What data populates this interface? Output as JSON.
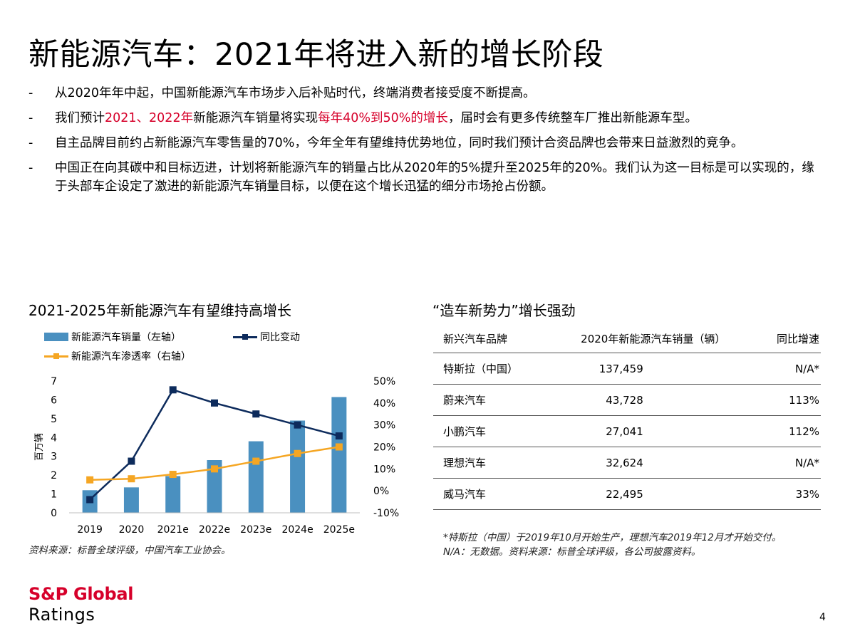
{
  "title": "新能源汽车：2021年将进入新的增长阶段",
  "bullets": [
    {
      "segments": [
        {
          "text": "从2020年年中起，中国新能源汽车市场步入后补贴时代，终端消费者接受度不断提高。",
          "red": false
        }
      ]
    },
    {
      "segments": [
        {
          "text": "我们预计",
          "red": false
        },
        {
          "text": "2021、2022年",
          "red": true
        },
        {
          "text": "新能源汽车销量将实现",
          "red": false
        },
        {
          "text": "每年40%到50%的增长",
          "red": true
        },
        {
          "text": "，届时会有更多传统整车厂推出新能源车型。",
          "red": false
        }
      ]
    },
    {
      "segments": [
        {
          "text": "自主品牌目前约占新能源汽车零售量的70%，今年全年有望维持优势地位，同时我们预计合资品牌也会带来日益激烈的竞争。",
          "red": false
        }
      ]
    },
    {
      "segments": [
        {
          "text": "中国正在向其碳中和目标迈进，计划将新能源汽车的销量占比从2020年的5%提升至2025年的20%。我们认为这一目标是可以实现的，缘于头部车企设定了激进的新能源汽车销量目标，以便在这个增长迅猛的细分市场抢占份额。",
          "red": false
        }
      ]
    }
  ],
  "bullet_marker": "-",
  "chart_data": {
    "type": "bar",
    "title": "2021-2025年新能源汽车有望维持高增长",
    "categories": [
      "2019",
      "2020",
      "2021e",
      "2022e",
      "2023e",
      "2024e",
      "2025e"
    ],
    "series": [
      {
        "name": "新能源汽车销量（左轴）",
        "type": "bar",
        "axis": "left",
        "values": [
          1.2,
          1.35,
          1.95,
          2.8,
          3.8,
          4.9,
          6.15
        ]
      },
      {
        "name": "同比变动",
        "type": "line",
        "axis": "right",
        "values": [
          -4.0,
          13.5,
          46.0,
          40.0,
          35.0,
          30.0,
          25.0
        ]
      },
      {
        "name": "新能源汽车渗透率（右轴）",
        "type": "line",
        "axis": "right",
        "values": [
          5.0,
          5.5,
          7.5,
          10.0,
          13.5,
          17.0,
          20.0
        ]
      }
    ],
    "ylabel": "百万辆",
    "ylim": [
      0,
      7
    ],
    "y_ticks": [
      "0",
      "1",
      "2",
      "3",
      "4",
      "5",
      "6",
      "7"
    ],
    "y2lim": [
      -10,
      50
    ],
    "y2_ticks": [
      "-10%",
      "0%",
      "10%",
      "20%",
      "30%",
      "40%",
      "50%"
    ],
    "legend_position": "top-left",
    "grid": false,
    "colors": {
      "bar": "#4a90c0",
      "yoy": "#0d2b5c",
      "penetration": "#f5a623"
    }
  },
  "chart_source": "资料来源：标普全球评级，中国汽车工业协会。",
  "table": {
    "title": "“造车新势力”增长强劲",
    "headers": [
      "新兴汽车品牌",
      "2020年新能源汽车销量（辆）",
      "同比增速"
    ],
    "rows": [
      [
        "特斯拉（中国）",
        "137,459",
        "N/A*"
      ],
      [
        "蔚来汽车",
        "43,728",
        "113%"
      ],
      [
        "小鹏汽车",
        "27,041",
        "112%"
      ],
      [
        "理想汽车",
        "32,624",
        "N/A*"
      ],
      [
        "威马汽车",
        "22,495",
        "33%"
      ]
    ],
    "footnote_1": "*特斯拉（中国）于2019年10月开始生产，理想汽车2019年12月才开始交付。",
    "footnote_2": "N/A：无数据。资料来源：标普全球评级，各公司披露资料。"
  },
  "logo": {
    "line1": "S&P Global",
    "line2": "Ratings"
  },
  "page_number": "4",
  "colors": {
    "accent_red": "#d6002a",
    "rule": "#555555"
  }
}
